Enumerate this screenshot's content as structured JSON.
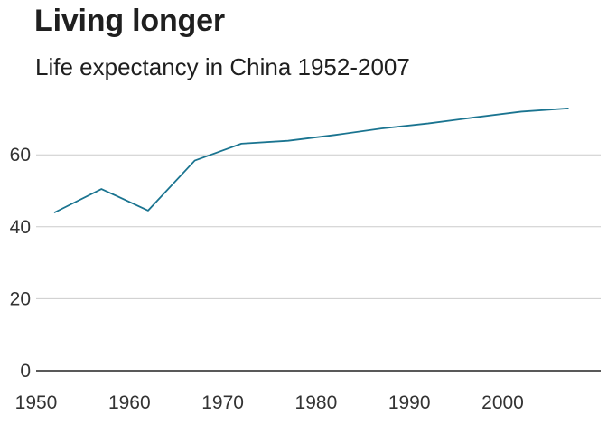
{
  "title": "Living longer",
  "subtitle": "Life expectancy in China 1952-2007",
  "chart_data": {
    "type": "line",
    "title": "Living longer",
    "subtitle": "Life expectancy in China 1952-2007",
    "xlabel": "",
    "ylabel": "",
    "x": [
      1952,
      1957,
      1962,
      1967,
      1972,
      1977,
      1982,
      1987,
      1992,
      1997,
      2002,
      2007
    ],
    "series": [
      {
        "name": "China",
        "values": [
          44.0,
          50.5,
          44.5,
          58.4,
          63.1,
          63.9,
          65.5,
          67.3,
          68.7,
          70.4,
          72.0,
          72.9
        ],
        "color": "#1a7490"
      }
    ],
    "xlim": [
      1950,
      2010
    ],
    "ylim": [
      0,
      75
    ],
    "xticks": [
      "1950",
      "1960",
      "1970",
      "1980",
      "1990",
      "2000"
    ],
    "yticks": [
      "0",
      "20",
      "40",
      "60"
    ],
    "grid": "horizontal",
    "legend": "none"
  }
}
